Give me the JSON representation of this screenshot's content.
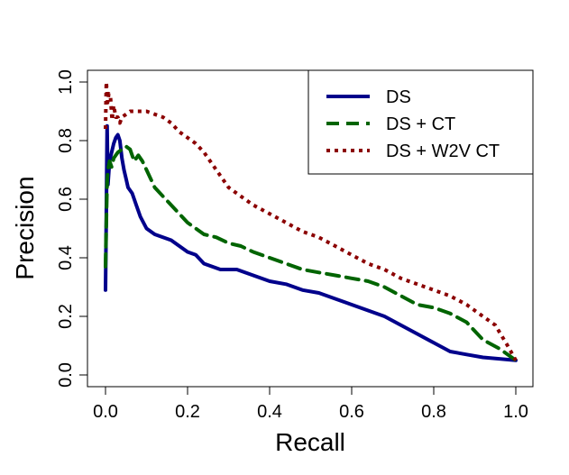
{
  "chart_data": {
    "type": "line",
    "title": "",
    "xlabel": "Recall",
    "ylabel": "Precision",
    "xlim": [
      0,
      1
    ],
    "ylim": [
      0,
      1
    ],
    "xticks": [
      "0.0",
      "0.2",
      "0.4",
      "0.6",
      "0.8",
      "1.0"
    ],
    "yticks": [
      "0.0",
      "0.2",
      "0.4",
      "0.6",
      "0.8",
      "1.0"
    ],
    "grid": false,
    "legend_position": "top-right",
    "series": [
      {
        "name": "DS",
        "color": "#00008b",
        "dash": "solid",
        "points": [
          [
            0.0,
            0.29
          ],
          [
            0.002,
            0.55
          ],
          [
            0.004,
            0.85
          ],
          [
            0.006,
            0.65
          ],
          [
            0.01,
            0.73
          ],
          [
            0.015,
            0.76
          ],
          [
            0.02,
            0.79
          ],
          [
            0.025,
            0.81
          ],
          [
            0.03,
            0.82
          ],
          [
            0.035,
            0.8
          ],
          [
            0.04,
            0.74
          ],
          [
            0.045,
            0.7
          ],
          [
            0.05,
            0.67
          ],
          [
            0.055,
            0.64
          ],
          [
            0.065,
            0.62
          ],
          [
            0.075,
            0.58
          ],
          [
            0.085,
            0.54
          ],
          [
            0.1,
            0.5
          ],
          [
            0.12,
            0.48
          ],
          [
            0.14,
            0.47
          ],
          [
            0.16,
            0.46
          ],
          [
            0.18,
            0.44
          ],
          [
            0.2,
            0.42
          ],
          [
            0.22,
            0.41
          ],
          [
            0.24,
            0.38
          ],
          [
            0.26,
            0.37
          ],
          [
            0.28,
            0.36
          ],
          [
            0.3,
            0.36
          ],
          [
            0.32,
            0.36
          ],
          [
            0.34,
            0.35
          ],
          [
            0.36,
            0.34
          ],
          [
            0.38,
            0.33
          ],
          [
            0.4,
            0.32
          ],
          [
            0.44,
            0.31
          ],
          [
            0.48,
            0.29
          ],
          [
            0.52,
            0.28
          ],
          [
            0.56,
            0.26
          ],
          [
            0.6,
            0.24
          ],
          [
            0.64,
            0.22
          ],
          [
            0.68,
            0.2
          ],
          [
            0.72,
            0.17
          ],
          [
            0.76,
            0.14
          ],
          [
            0.8,
            0.11
          ],
          [
            0.84,
            0.08
          ],
          [
            0.88,
            0.07
          ],
          [
            0.92,
            0.06
          ],
          [
            0.96,
            0.055
          ],
          [
            1.0,
            0.05
          ]
        ]
      },
      {
        "name": "DS + CT",
        "color": "#006400",
        "dash": "dashed",
        "points": [
          [
            0.0,
            0.37
          ],
          [
            0.002,
            0.52
          ],
          [
            0.004,
            0.66
          ],
          [
            0.006,
            0.7
          ],
          [
            0.01,
            0.73
          ],
          [
            0.015,
            0.71
          ],
          [
            0.02,
            0.74
          ],
          [
            0.03,
            0.76
          ],
          [
            0.04,
            0.77
          ],
          [
            0.05,
            0.78
          ],
          [
            0.06,
            0.77
          ],
          [
            0.07,
            0.73
          ],
          [
            0.08,
            0.75
          ],
          [
            0.09,
            0.73
          ],
          [
            0.1,
            0.7
          ],
          [
            0.12,
            0.64
          ],
          [
            0.14,
            0.61
          ],
          [
            0.16,
            0.58
          ],
          [
            0.18,
            0.55
          ],
          [
            0.2,
            0.52
          ],
          [
            0.22,
            0.5
          ],
          [
            0.24,
            0.48
          ],
          [
            0.27,
            0.47
          ],
          [
            0.3,
            0.45
          ],
          [
            0.33,
            0.44
          ],
          [
            0.36,
            0.42
          ],
          [
            0.4,
            0.4
          ],
          [
            0.44,
            0.38
          ],
          [
            0.48,
            0.36
          ],
          [
            0.52,
            0.35
          ],
          [
            0.56,
            0.34
          ],
          [
            0.6,
            0.33
          ],
          [
            0.64,
            0.32
          ],
          [
            0.68,
            0.3
          ],
          [
            0.72,
            0.27
          ],
          [
            0.76,
            0.24
          ],
          [
            0.8,
            0.23
          ],
          [
            0.84,
            0.21
          ],
          [
            0.88,
            0.18
          ],
          [
            0.92,
            0.12
          ],
          [
            0.96,
            0.09
          ],
          [
            1.0,
            0.05
          ]
        ]
      },
      {
        "name": "DS + W2V CT",
        "color": "#8b0000",
        "dash": "dotted",
        "points": [
          [
            0.0,
            0.84
          ],
          [
            0.002,
            1.0
          ],
          [
            0.005,
            0.93
          ],
          [
            0.008,
            0.96
          ],
          [
            0.012,
            0.95
          ],
          [
            0.016,
            0.87
          ],
          [
            0.02,
            0.92
          ],
          [
            0.025,
            0.88
          ],
          [
            0.03,
            0.88
          ],
          [
            0.035,
            0.86
          ],
          [
            0.04,
            0.88
          ],
          [
            0.05,
            0.89
          ],
          [
            0.06,
            0.9
          ],
          [
            0.08,
            0.9
          ],
          [
            0.1,
            0.9
          ],
          [
            0.12,
            0.89
          ],
          [
            0.14,
            0.88
          ],
          [
            0.16,
            0.86
          ],
          [
            0.18,
            0.83
          ],
          [
            0.2,
            0.81
          ],
          [
            0.22,
            0.79
          ],
          [
            0.24,
            0.76
          ],
          [
            0.26,
            0.72
          ],
          [
            0.28,
            0.68
          ],
          [
            0.3,
            0.64
          ],
          [
            0.33,
            0.61
          ],
          [
            0.36,
            0.58
          ],
          [
            0.4,
            0.55
          ],
          [
            0.44,
            0.52
          ],
          [
            0.48,
            0.49
          ],
          [
            0.52,
            0.47
          ],
          [
            0.56,
            0.44
          ],
          [
            0.6,
            0.41
          ],
          [
            0.64,
            0.38
          ],
          [
            0.68,
            0.36
          ],
          [
            0.72,
            0.33
          ],
          [
            0.76,
            0.31
          ],
          [
            0.8,
            0.29
          ],
          [
            0.84,
            0.27
          ],
          [
            0.88,
            0.24
          ],
          [
            0.92,
            0.2
          ],
          [
            0.95,
            0.17
          ],
          [
            0.98,
            0.1
          ],
          [
            1.0,
            0.05
          ]
        ]
      }
    ]
  }
}
